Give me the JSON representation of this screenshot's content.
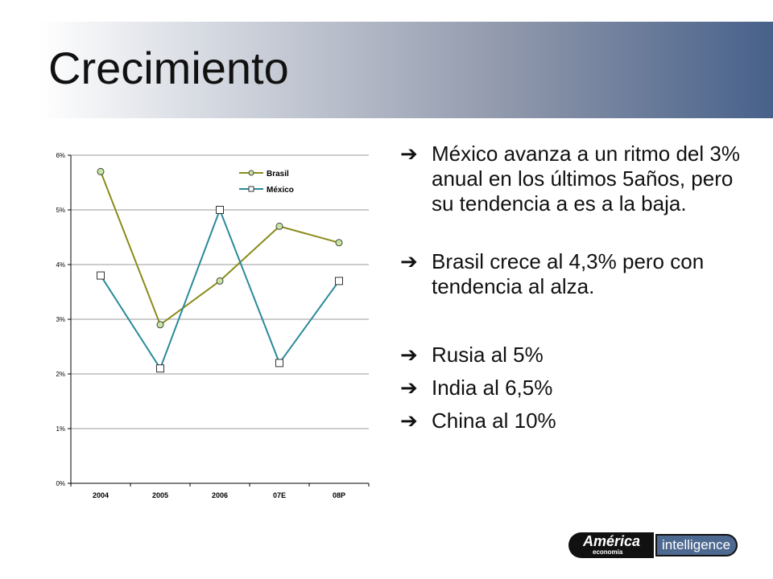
{
  "slide": {
    "title": "Crecimiento"
  },
  "bullets": [
    "México avanza a un ritmo del 3% anual en los últimos 5años, pero su tendencia a es a la baja.",
    "Brasil crece al 4,3% pero con tendencia al alza.",
    "Rusia al 5%",
    "India al 6,5%",
    "China al 10%"
  ],
  "bullet_icon": "right-arrow-icon",
  "logo": {
    "brand_top": "América",
    "brand_bottom": "economía",
    "brand_right": "intelligence",
    "colors": {
      "dark": "#111111",
      "blue": "#4d6990"
    }
  },
  "chart_data": {
    "type": "line",
    "categories": [
      "2004",
      "2005",
      "2006",
      "07E",
      "08P"
    ],
    "series": [
      {
        "name": "Brasil",
        "values": [
          5.7,
          2.9,
          3.7,
          4.7,
          4.4
        ],
        "color": "#8b8b1a",
        "marker": "circle",
        "marker_fill": "#c8e6a0"
      },
      {
        "name": "México",
        "values": [
          3.8,
          2.1,
          5.0,
          2.2,
          3.7
        ],
        "color": "#2a8a9a",
        "marker": "square",
        "marker_fill": "#ffffff"
      }
    ],
    "yticks": [
      "0%",
      "1%",
      "2%",
      "3%",
      "4%",
      "5%",
      "6%"
    ],
    "ylim": [
      0,
      6
    ],
    "grid": true,
    "legend": "top-right",
    "title": "",
    "xlabel": "",
    "ylabel": ""
  }
}
